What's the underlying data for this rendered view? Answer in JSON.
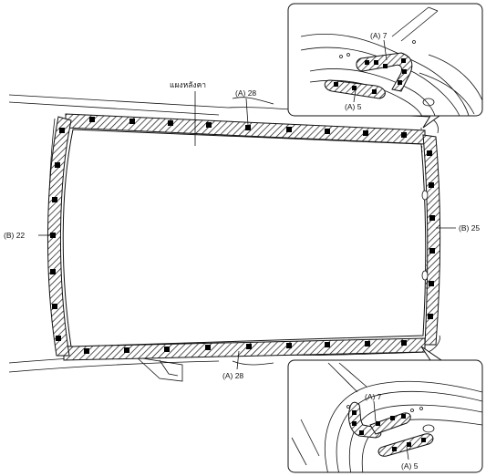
{
  "labels": {
    "roof_panel": "แผงหลังคา",
    "top": "(A) 28",
    "bottom": "(A) 28",
    "left": "(B) 22",
    "right": "(B) 25",
    "inset_top_a7": "(A) 7",
    "inset_top_a5": "(A) 5",
    "inset_bottom_a7": "(A) 7",
    "inset_bottom_a5": "(A) 5"
  },
  "colors": {
    "line": "#111111",
    "sealer_fill": "#ffffff",
    "dot": "#000000"
  },
  "icons": {
    "weld_spot": "black-square-dot",
    "sealer_band": "hatched-band"
  }
}
